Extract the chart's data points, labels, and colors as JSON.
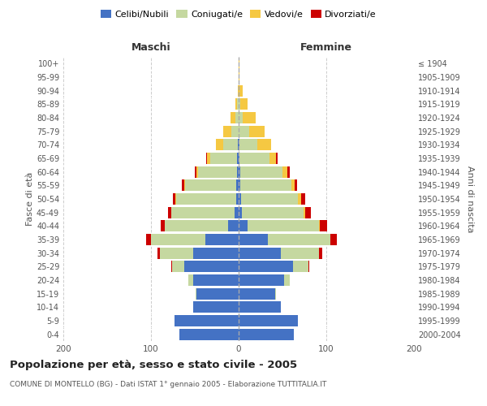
{
  "age_groups": [
    "0-4",
    "5-9",
    "10-14",
    "15-19",
    "20-24",
    "25-29",
    "30-34",
    "35-39",
    "40-44",
    "45-49",
    "50-54",
    "55-59",
    "60-64",
    "65-69",
    "70-74",
    "75-79",
    "80-84",
    "85-89",
    "90-94",
    "95-99",
    "100+"
  ],
  "birth_years": [
    "2000-2004",
    "1995-1999",
    "1990-1994",
    "1985-1989",
    "1980-1984",
    "1975-1979",
    "1970-1974",
    "1965-1969",
    "1960-1964",
    "1955-1959",
    "1950-1954",
    "1945-1949",
    "1940-1944",
    "1935-1939",
    "1930-1934",
    "1925-1929",
    "1920-1924",
    "1915-1919",
    "1910-1914",
    "1905-1909",
    "≤ 1904"
  ],
  "males": {
    "celibe": [
      68,
      73,
      52,
      48,
      52,
      62,
      52,
      38,
      12,
      5,
      3,
      3,
      2,
      2,
      1,
      0,
      0,
      0,
      0,
      0,
      0
    ],
    "coniugato": [
      0,
      0,
      0,
      1,
      5,
      14,
      38,
      62,
      72,
      72,
      68,
      58,
      44,
      30,
      17,
      8,
      4,
      2,
      0,
      0,
      0
    ],
    "vedovo": [
      0,
      0,
      0,
      0,
      0,
      0,
      0,
      0,
      0,
      0,
      1,
      1,
      2,
      4,
      8,
      10,
      5,
      2,
      1,
      0,
      0
    ],
    "divorziato": [
      0,
      0,
      0,
      0,
      0,
      1,
      3,
      6,
      5,
      4,
      3,
      3,
      2,
      1,
      0,
      0,
      0,
      0,
      0,
      0,
      0
    ]
  },
  "females": {
    "nubile": [
      63,
      68,
      48,
      42,
      52,
      62,
      48,
      33,
      10,
      4,
      3,
      2,
      2,
      1,
      1,
      0,
      0,
      0,
      0,
      0,
      0
    ],
    "coniugata": [
      0,
      0,
      0,
      1,
      6,
      18,
      44,
      72,
      82,
      70,
      65,
      58,
      48,
      34,
      20,
      12,
      5,
      2,
      0,
      0,
      0
    ],
    "vedova": [
      0,
      0,
      0,
      0,
      0,
      0,
      0,
      0,
      1,
      2,
      3,
      4,
      6,
      8,
      16,
      18,
      14,
      8,
      5,
      1,
      1
    ],
    "divorziata": [
      0,
      0,
      0,
      0,
      0,
      1,
      3,
      7,
      8,
      6,
      5,
      3,
      2,
      1,
      0,
      0,
      0,
      0,
      0,
      0,
      0
    ]
  },
  "colors": {
    "celibe": "#4472c4",
    "coniugato": "#c5d8a0",
    "vedovo": "#f5c842",
    "divorziato": "#cc0000"
  },
  "xlim": 200,
  "title": "Popolazione per età, sesso e stato civile - 2005",
  "subtitle": "COMUNE DI MONTELLO (BG) - Dati ISTAT 1° gennaio 2005 - Elaborazione TUTTITALIA.IT",
  "ylabel_left": "Fasce di età",
  "ylabel_right": "Anni di nascita",
  "xlabel_left": "Maschi",
  "xlabel_right": "Femmine",
  "legend_labels": [
    "Celibi/Nubili",
    "Coniugati/e",
    "Vedovi/e",
    "Divorziati/e"
  ],
  "background_color": "#ffffff",
  "grid_color": "#cccccc"
}
